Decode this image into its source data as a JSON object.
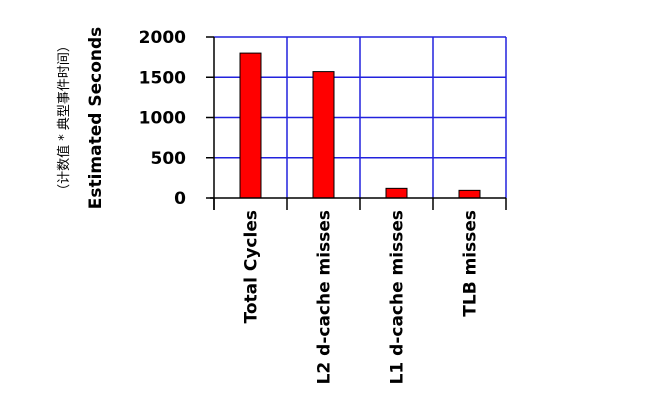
{
  "chart_data": {
    "type": "bar",
    "categories": [
      "Total Cycles",
      "L2 d-cache misses",
      "L1 d-cache misses",
      "TLB misses"
    ],
    "values": [
      1800,
      1570,
      120,
      95
    ],
    "ylabel": "Estimated Seconds",
    "ylabel_secondary": "（计数值 * 典型事件时间）",
    "ylim": [
      0,
      2000
    ],
    "yticks": [
      0,
      500,
      1000,
      1500,
      2000
    ],
    "grid": true,
    "legend": "none"
  },
  "colors": {
    "bar_fill": "#ff0000",
    "bar_stroke": "#000000",
    "grid": "#2222dd",
    "axis": "#000000"
  }
}
